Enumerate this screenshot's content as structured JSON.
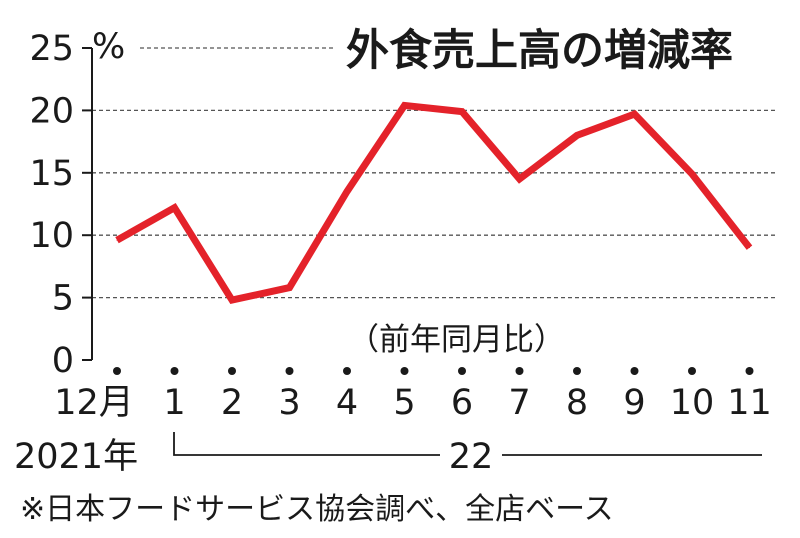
{
  "chart_data": {
    "type": "line",
    "title": "外食売上高の増減率",
    "ylabel_unit": "%",
    "note": "（前年同月比）",
    "x_tick_labels": [
      "12月",
      "1",
      "2",
      "3",
      "4",
      "5",
      "6",
      "7",
      "8",
      "9",
      "10",
      "11"
    ],
    "year_labels": [
      "2021年",
      "22"
    ],
    "series": [
      {
        "values": [
          9.6,
          12.2,
          4.8,
          5.8,
          13.5,
          20.4,
          19.9,
          14.5,
          18.0,
          19.7,
          14.9,
          9.0
        ]
      }
    ],
    "y_ticks": [
      0,
      5,
      10,
      15,
      20,
      25
    ],
    "ylim": [
      0,
      25
    ],
    "grid": "dashed horizontal",
    "source": "※日本フードサービス協会調べ、全店ベース"
  },
  "colors": {
    "line": "#e4222a",
    "text": "#1a1a1a",
    "grid": "#555555"
  }
}
